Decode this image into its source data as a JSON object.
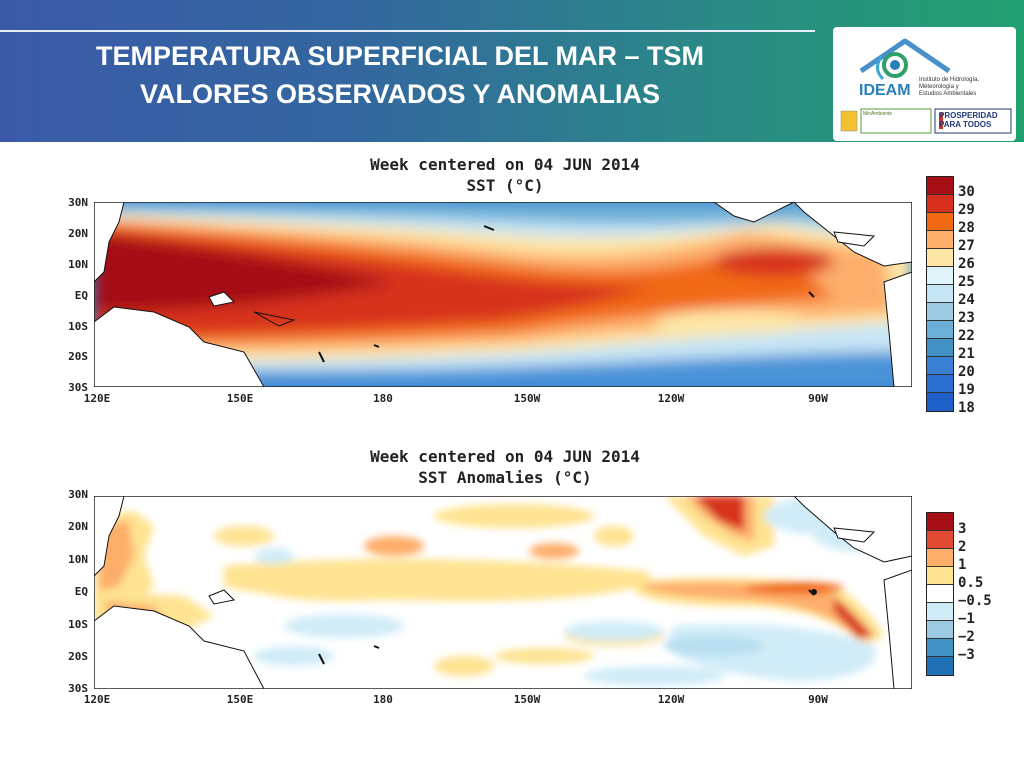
{
  "header": {
    "line1": "TEMPERATURA SUPERFICIAL DEL MAR – TSM",
    "line2": "VALORES OBSERVADOS Y ANOMALIAS",
    "logo": {
      "name": "IDEAM",
      "subtitle_lines": [
        "Instituto de Hidrología,",
        "Meteorología y",
        "Estudios Ambientales"
      ],
      "ministry": "MinAmbiente",
      "slogan_lines": [
        "PROSPERIDAD",
        "PARA TODOS"
      ]
    }
  },
  "sst_map": {
    "title_line1": "Week centered on 04 JUN 2014",
    "title_line2": "SST (°C)",
    "lat_labels": [
      "30N",
      "20N",
      "10N",
      "EQ",
      "10S",
      "20S",
      "30S"
    ],
    "lon_labels": [
      "120E",
      "150E",
      "180",
      "150W",
      "120W",
      "90W"
    ],
    "colorbar": {
      "labels": [
        "30",
        "29",
        "28",
        "27",
        "26",
        "25",
        "24",
        "23",
        "22",
        "21",
        "20",
        "19",
        "18"
      ],
      "colors": [
        "#a50f15",
        "#d7301f",
        "#f16913",
        "#fdae6b",
        "#fee6a6",
        "#e0f3f8",
        "#c6e5f5",
        "#9ecae1",
        "#6baed6",
        "#4292c6",
        "#3b7fd4",
        "#2b6fd0",
        "#1f5fc8"
      ]
    }
  },
  "anom_map": {
    "title_line1": "Week centered on 04 JUN 2014",
    "title_line2": "SST Anomalies (°C)",
    "lat_labels": [
      "30N",
      "20N",
      "10N",
      "EQ",
      "10S",
      "20S",
      "30S"
    ],
    "lon_labels": [
      "120E",
      "150E",
      "180",
      "150W",
      "120W",
      "90W"
    ],
    "colorbar": {
      "labels": [
        "3",
        "2",
        "1",
        "0.5",
        "−0.5",
        "−1",
        "−2",
        "−3"
      ],
      "colors": [
        "#a50f15",
        "#e34a33",
        "#fdae6b",
        "#fee391",
        "#ffffff",
        "#d0ecf8",
        "#9ecae1",
        "#4292c6",
        "#2171b5"
      ]
    }
  }
}
